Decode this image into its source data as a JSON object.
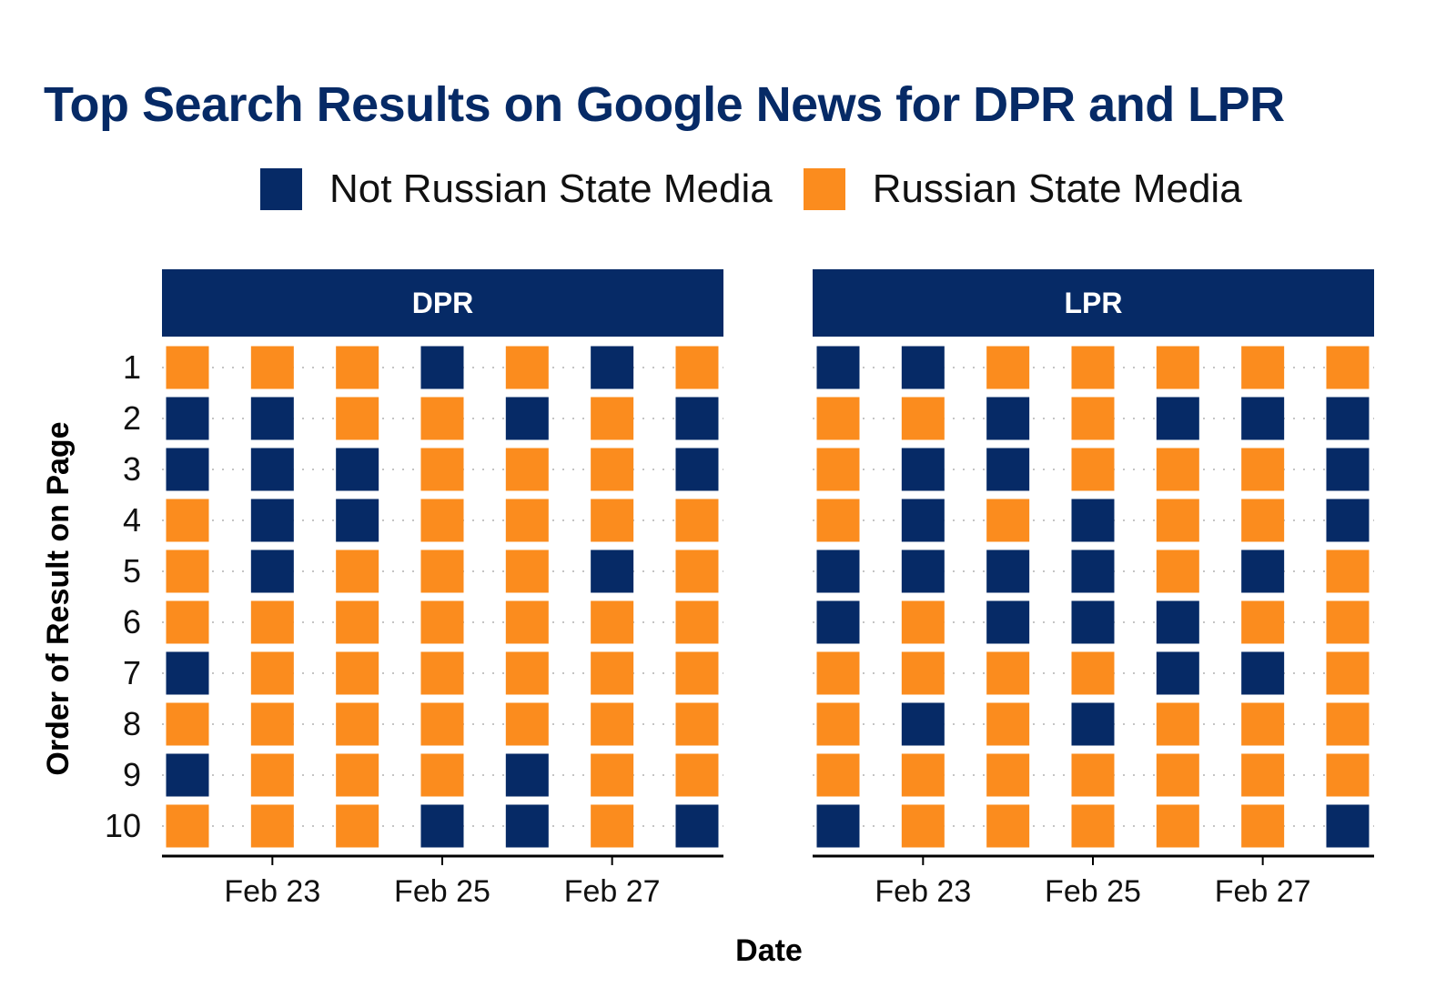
{
  "chart_data": {
    "type": "heatmap",
    "title": "Top Search Results on Google News for DPR and LPR",
    "xlabel": "Date",
    "ylabel": "Order of Result on Page",
    "legend": {
      "position": "top",
      "entries": [
        {
          "key": "not_rsm",
          "label": "Not Russian State Media",
          "color": "#062a66"
        },
        {
          "key": "rsm",
          "label": "Russian State Media",
          "color": "#fb8c1e"
        }
      ]
    },
    "dates": [
      "Feb 22",
      "Feb 23",
      "Feb 24",
      "Feb 25",
      "Feb 26",
      "Feb 27",
      "Feb 28"
    ],
    "x_ticks": [
      "Feb 23",
      "Feb 25",
      "Feb 27"
    ],
    "y_ticks": [
      1,
      2,
      3,
      4,
      5,
      6,
      7,
      8,
      9,
      10
    ],
    "codes": {
      "N": "Not Russian State Media",
      "R": "Russian State Media"
    },
    "panels": [
      {
        "name": "DPR",
        "rows": [
          [
            "R",
            "R",
            "R",
            "N",
            "R",
            "N",
            "R"
          ],
          [
            "N",
            "N",
            "R",
            "R",
            "N",
            "R",
            "N"
          ],
          [
            "N",
            "N",
            "N",
            "R",
            "R",
            "R",
            "N"
          ],
          [
            "R",
            "N",
            "N",
            "R",
            "R",
            "R",
            "R"
          ],
          [
            "R",
            "N",
            "R",
            "R",
            "R",
            "N",
            "R"
          ],
          [
            "R",
            "R",
            "R",
            "R",
            "R",
            "R",
            "R"
          ],
          [
            "N",
            "R",
            "R",
            "R",
            "R",
            "R",
            "R"
          ],
          [
            "R",
            "R",
            "R",
            "R",
            "R",
            "R",
            "R"
          ],
          [
            "N",
            "R",
            "R",
            "R",
            "N",
            "R",
            "R"
          ],
          [
            "R",
            "R",
            "R",
            "N",
            "N",
            "R",
            "N"
          ]
        ]
      },
      {
        "name": "LPR",
        "rows": [
          [
            "N",
            "N",
            "R",
            "R",
            "R",
            "R",
            "R"
          ],
          [
            "R",
            "R",
            "N",
            "R",
            "N",
            "N",
            "N"
          ],
          [
            "R",
            "N",
            "N",
            "R",
            "R",
            "R",
            "N"
          ],
          [
            "R",
            "N",
            "R",
            "N",
            "R",
            "R",
            "N"
          ],
          [
            "N",
            "N",
            "N",
            "N",
            "R",
            "N",
            "R"
          ],
          [
            "N",
            "R",
            "N",
            "N",
            "N",
            "R",
            "R"
          ],
          [
            "R",
            "R",
            "R",
            "R",
            "N",
            "N",
            "R"
          ],
          [
            "R",
            "N",
            "R",
            "N",
            "R",
            "R",
            "R"
          ],
          [
            "R",
            "R",
            "R",
            "R",
            "R",
            "R",
            "R"
          ],
          [
            "N",
            "R",
            "R",
            "R",
            "R",
            "R",
            "N"
          ]
        ]
      }
    ]
  }
}
